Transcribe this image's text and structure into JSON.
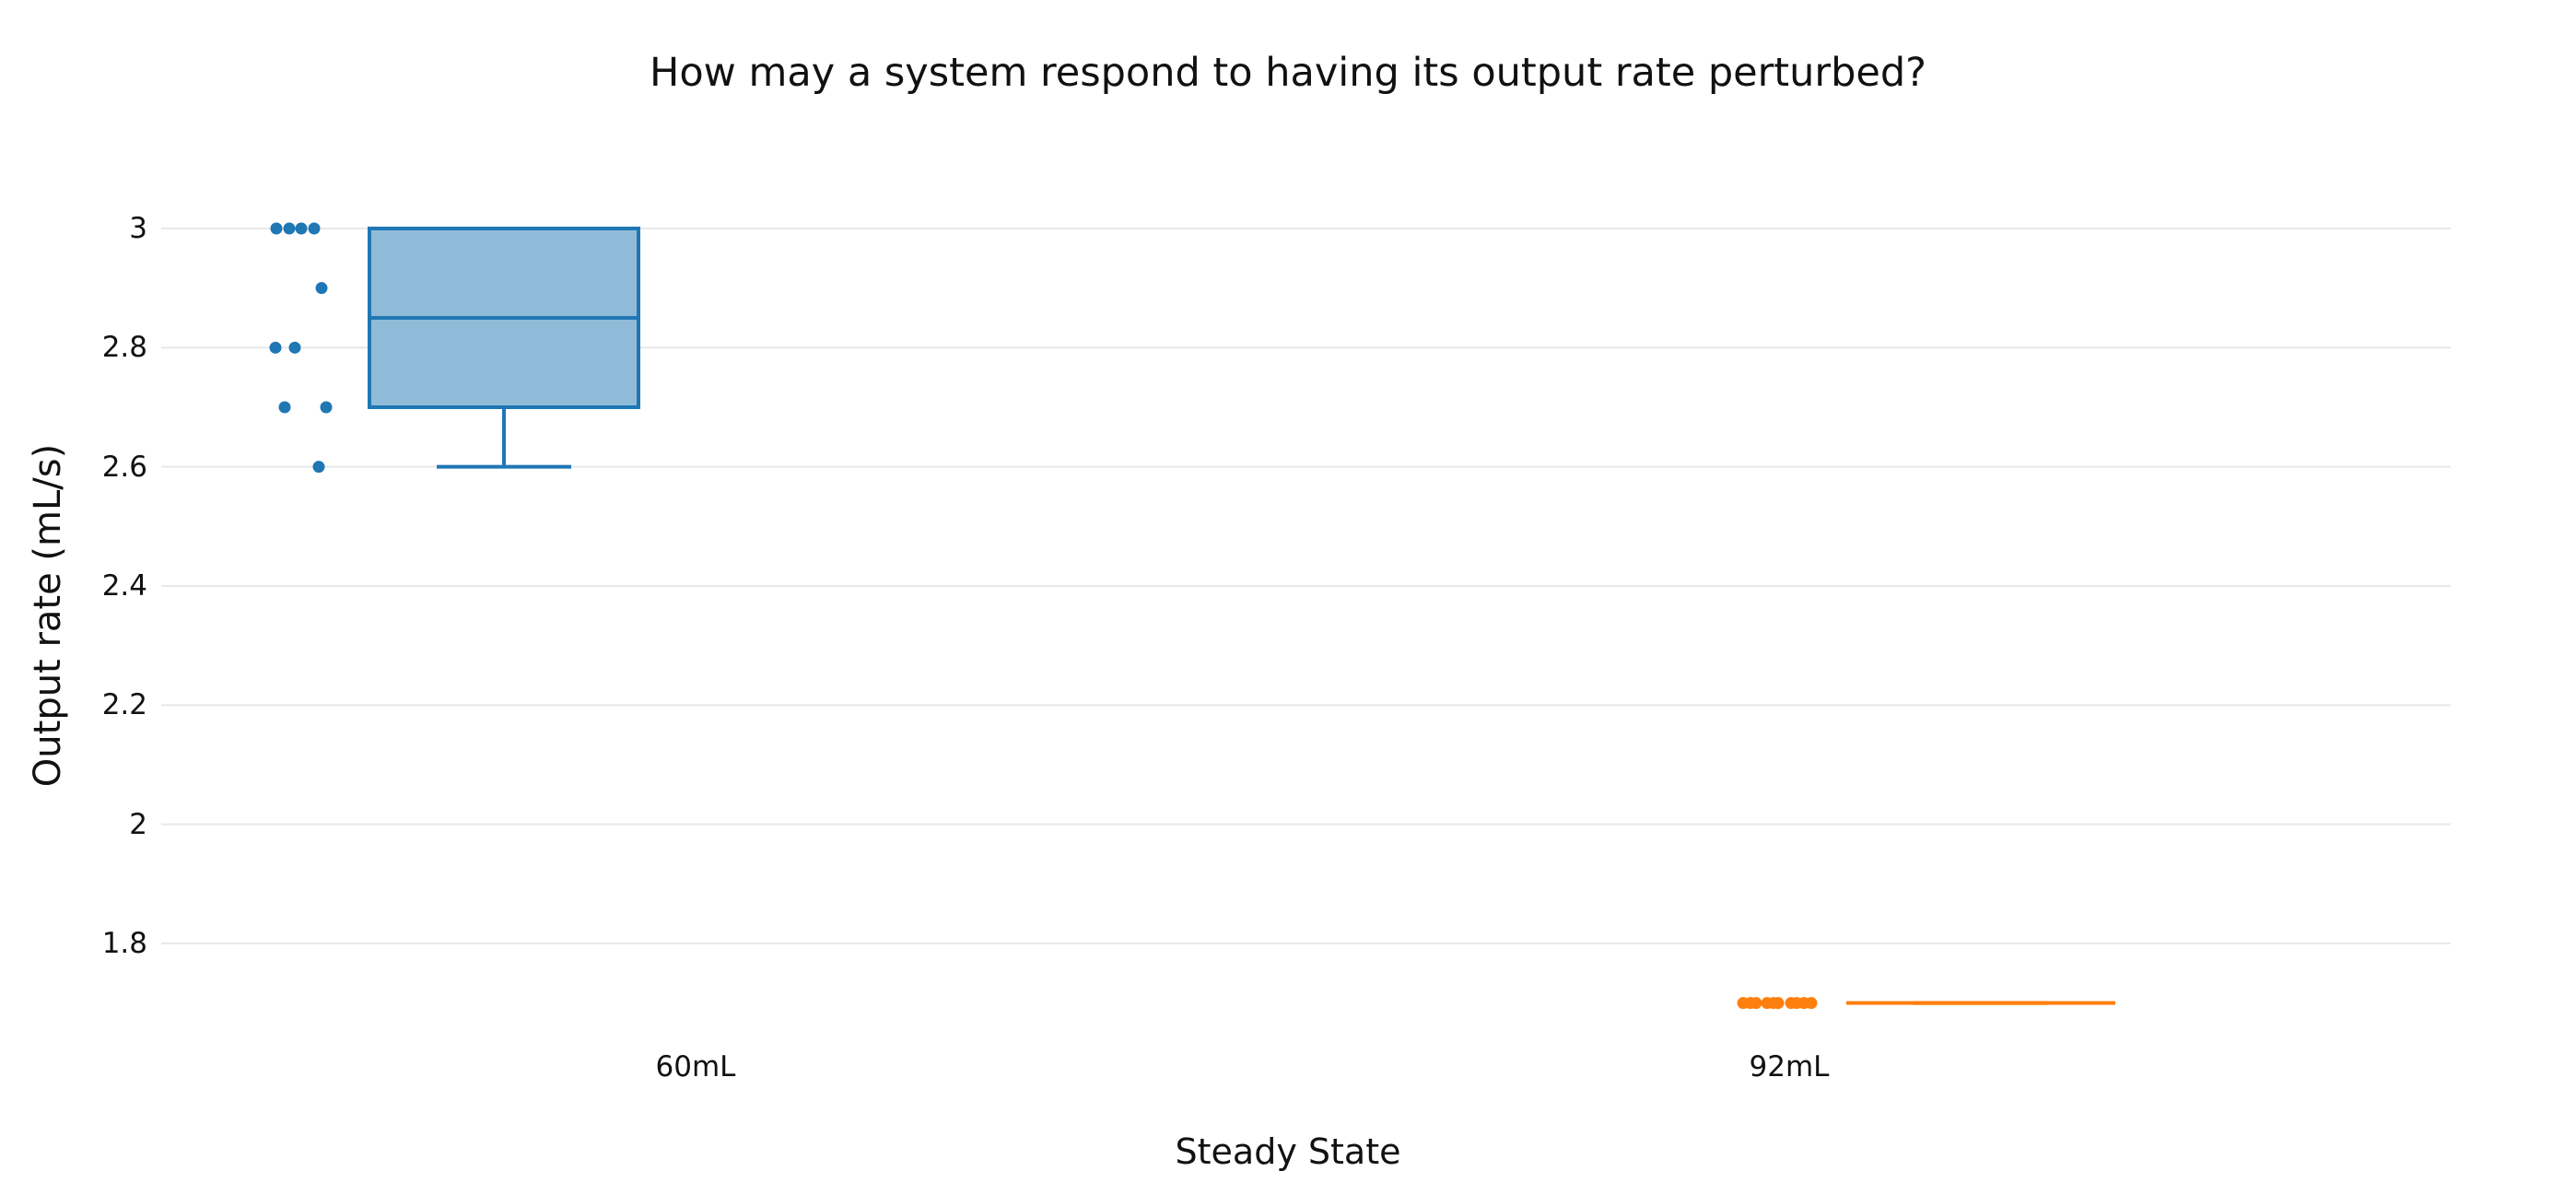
{
  "chart_data": {
    "type": "box",
    "title": "How may a system respond to having its output rate perturbed?",
    "xlabel": "Steady State",
    "ylabel": "Output rate (mL/s)",
    "categories": [
      "60mL",
      "92mL"
    ],
    "yticks": [
      "1.8",
      "2",
      "2.2",
      "2.4",
      "2.6",
      "2.8",
      "3"
    ],
    "ylim": [
      1.6,
      3.1
    ],
    "grid": true,
    "legend": "none",
    "series": [
      {
        "category": "60mL",
        "color": "#1f77b4",
        "fill": "#8fbbd9",
        "points": [
          3.0,
          3.0,
          3.0,
          3.0,
          2.9,
          2.8,
          2.8,
          2.7,
          2.7,
          2.6
        ],
        "min": 2.6,
        "q1": 2.7,
        "median": 2.85,
        "q3": 3.0,
        "max": 3.0
      },
      {
        "category": "92mL",
        "color": "#ff7f0e",
        "fill": "#ffbf86",
        "points": [
          1.7,
          1.7,
          1.7,
          1.7,
          1.7,
          1.7,
          1.7,
          1.7,
          1.7,
          1.7
        ],
        "min": 1.7,
        "q1": 1.7,
        "median": 1.7,
        "q3": 1.7,
        "max": 1.7
      }
    ]
  }
}
